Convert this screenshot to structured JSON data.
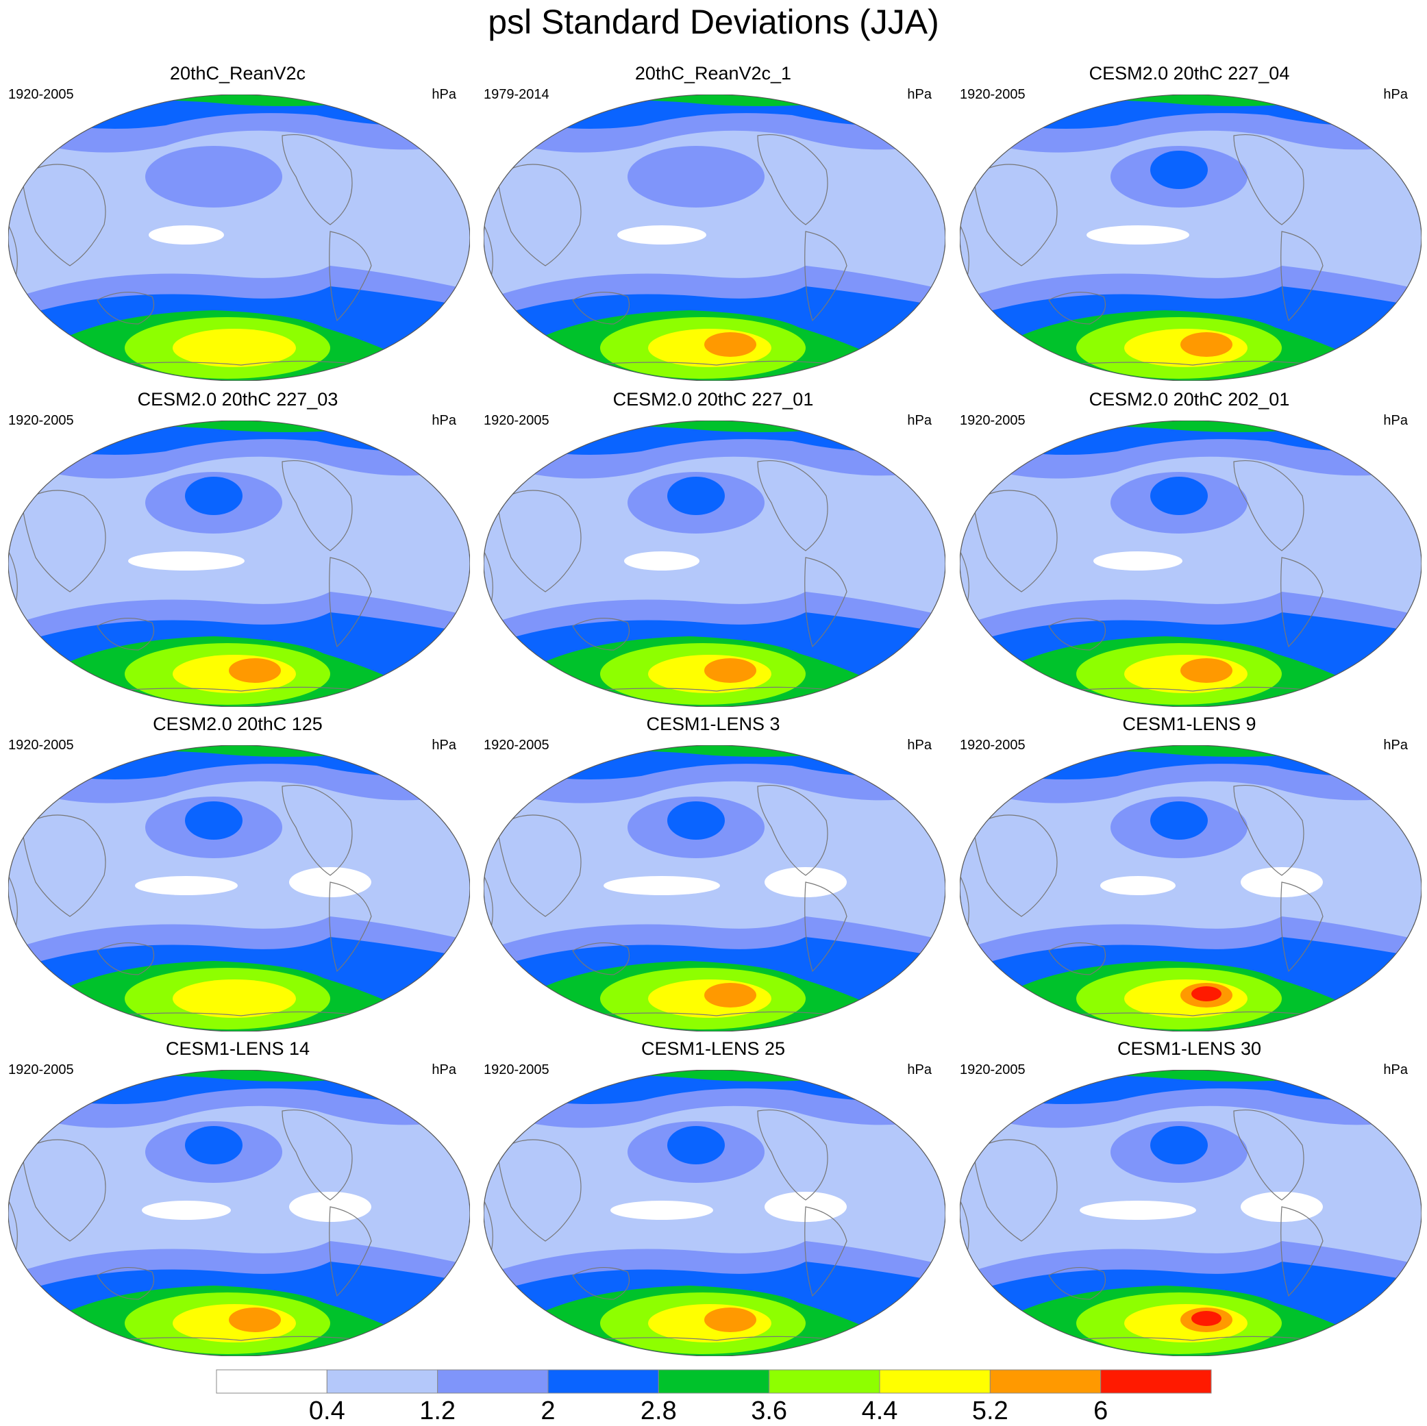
{
  "title": "psl Standard Deviations (JJA)",
  "panels": [
    {
      "name": "20thC_ReanV2c",
      "period": "1920-2005",
      "units": "hPa"
    },
    {
      "name": "20thC_ReanV2c_1",
      "period": "1979-2014",
      "units": "hPa"
    },
    {
      "name": "CESM2.0 20thC 227_04",
      "period": "1920-2005",
      "units": "hPa"
    },
    {
      "name": "CESM2.0 20thC 227_03",
      "period": "1920-2005",
      "units": "hPa"
    },
    {
      "name": "CESM2.0 20thC 227_01",
      "period": "1920-2005",
      "units": "hPa"
    },
    {
      "name": "CESM2.0 20thC 202_01",
      "period": "1920-2005",
      "units": "hPa"
    },
    {
      "name": "CESM2.0 20thC 125",
      "period": "1920-2005",
      "units": "hPa"
    },
    {
      "name": "CESM1-LENS 3",
      "period": "1920-2005",
      "units": "hPa"
    },
    {
      "name": "CESM1-LENS 9",
      "period": "1920-2005",
      "units": "hPa"
    },
    {
      "name": "CESM1-LENS 14",
      "period": "1920-2005",
      "units": "hPa"
    },
    {
      "name": "CESM1-LENS 25",
      "period": "1920-2005",
      "units": "hPa"
    },
    {
      "name": "CESM1-LENS 30",
      "period": "1920-2005",
      "units": "hPa"
    }
  ],
  "colorbar": {
    "levels": [
      "0.4",
      "1.2",
      "2",
      "2.8",
      "3.6",
      "4.4",
      "5.2",
      "6"
    ],
    "colors": [
      "#ffffff",
      "#b4c8fa",
      "#7f95fa",
      "#0a64ff",
      "#00c22b",
      "#8eff00",
      "#ffff00",
      "#ff9900",
      "#ff1a00"
    ]
  }
}
